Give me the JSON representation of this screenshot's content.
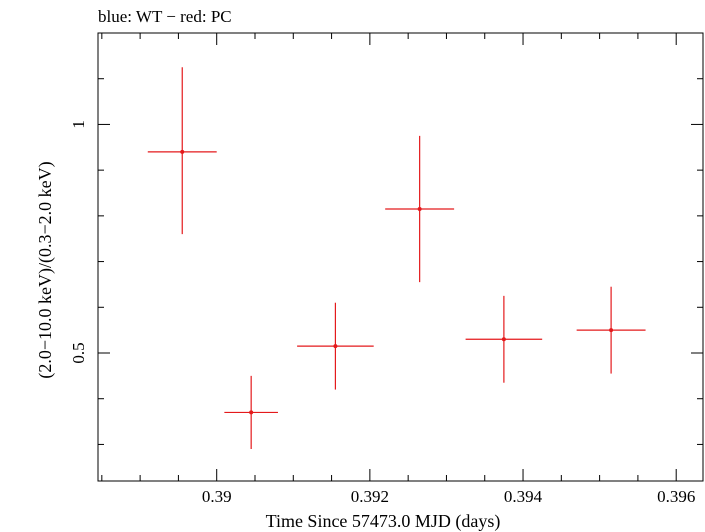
{
  "chart_data": {
    "type": "scatter",
    "title": "blue: WT − red: PC",
    "xlabel": "Time Since 57473.0 MJD (days)",
    "ylabel": "(2.0−10.0 keV)/(0.3−2.0 keV)",
    "xlim": [
      0.38845,
      0.39635
    ],
    "ylim": [
      0.22,
      1.2
    ],
    "x_ticks": [
      0.39,
      0.392,
      0.394,
      0.396
    ],
    "x_tick_labels": [
      "0.39",
      "0.392",
      "0.394",
      "0.396"
    ],
    "y_ticks": [
      0.5,
      1
    ],
    "y_tick_labels": [
      "0.5",
      "1"
    ],
    "series": [
      {
        "color": "#e41a1c",
        "points": [
          {
            "x": 0.38955,
            "xerr": 0.00045,
            "y": 0.94,
            "yerr_lo": 0.18,
            "yerr_hi": 0.185
          },
          {
            "x": 0.39045,
            "xerr": 0.00035,
            "y": 0.37,
            "yerr_lo": 0.08,
            "yerr_hi": 0.08
          },
          {
            "x": 0.39155,
            "xerr": 0.0005,
            "y": 0.515,
            "yerr_lo": 0.095,
            "yerr_hi": 0.095
          },
          {
            "x": 0.39265,
            "xerr": 0.00045,
            "y": 0.815,
            "yerr_lo": 0.16,
            "yerr_hi": 0.16
          },
          {
            "x": 0.39375,
            "xerr": 0.0005,
            "y": 0.53,
            "yerr_lo": 0.095,
            "yerr_hi": 0.095
          },
          {
            "x": 0.39515,
            "xerr": 0.00045,
            "y": 0.55,
            "yerr_lo": 0.095,
            "yerr_hi": 0.095
          }
        ]
      }
    ],
    "grid": false
  }
}
